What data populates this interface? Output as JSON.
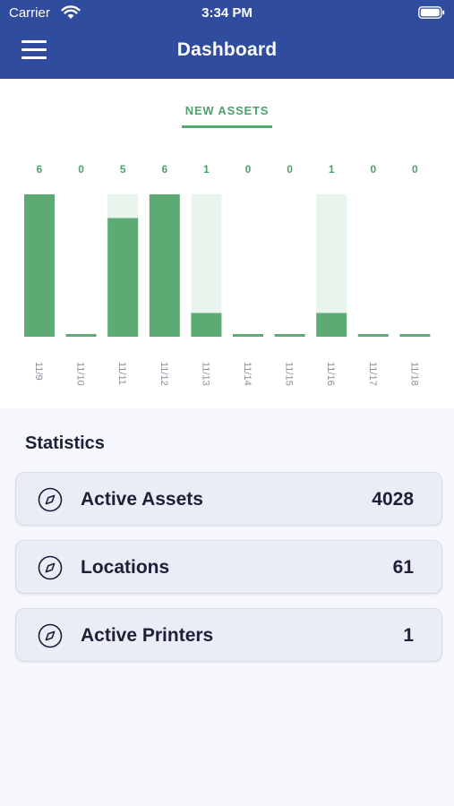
{
  "status_bar": {
    "carrier": "Carrier",
    "time": "3:34 PM"
  },
  "nav": {
    "title": "Dashboard"
  },
  "chart_tab": {
    "label": "NEW ASSETS"
  },
  "colors": {
    "bar_fill": "#5cab75",
    "bar_track": "#e9f4ec",
    "label_green": "#4fa06c",
    "header_blue": "#2f4c9f"
  },
  "chart_data": {
    "type": "bar",
    "categories": [
      "11/9",
      "11/10",
      "11/11",
      "11/12",
      "11/13",
      "11/14",
      "11/15",
      "11/16",
      "11/17",
      "11/18"
    ],
    "values": [
      6,
      0,
      5,
      6,
      1,
      0,
      0,
      1,
      0,
      0
    ],
    "value_labels": [
      "6",
      "0",
      "5",
      "6",
      "1",
      "0",
      "0",
      "1",
      "0",
      "0"
    ],
    "ylim": [
      0,
      6
    ],
    "grid": false,
    "title": "",
    "xlabel": "",
    "ylabel": ""
  },
  "statistics": {
    "heading": "Statistics",
    "items": [
      {
        "label": "Active Assets",
        "value": "4028",
        "icon": "compass-icon"
      },
      {
        "label": "Locations",
        "value": "61",
        "icon": "compass-icon"
      },
      {
        "label": "Active Printers",
        "value": "1",
        "icon": "compass-icon"
      }
    ]
  }
}
